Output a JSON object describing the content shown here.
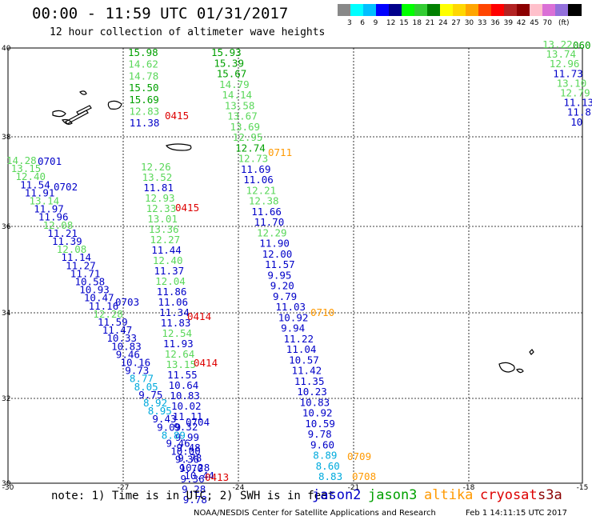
{
  "title": "00:00 - 11:59 UTC 01/31/2017",
  "subtitle": "12 hour collection of altimeter wave heights",
  "colorbar": {
    "unit": "(ft)",
    "colors": [
      "#888888",
      "#00ffff",
      "#00bfff",
      "#0000ff",
      "#00008b",
      "#00ff00",
      "#32cd32",
      "#008000",
      "#ffff00",
      "#ffd700",
      "#ffa500",
      "#ff4500",
      "#ff0000",
      "#b22222",
      "#8b0000",
      "#ffc0cb",
      "#da70d6",
      "#9370db",
      "#000000"
    ],
    "labels": [
      "3",
      "6",
      "9",
      "12",
      "15",
      "18",
      "21",
      "24",
      "27",
      "30",
      "33",
      "36",
      "39",
      "42",
      "45",
      "70"
    ]
  },
  "axes": {
    "x_labels": [
      "-30",
      "-27",
      "-24",
      "-21",
      "-18",
      "-15"
    ],
    "y_labels": [
      "40",
      "38",
      "36",
      "34",
      "32",
      "30"
    ]
  },
  "colors": {
    "jason2": "#0000c8",
    "jason3": "#00a000",
    "jason3_light": "#5ad75a",
    "altika": "#ff9900",
    "cryosat": "#dd0000",
    "s3a": "#8b0000",
    "cyan": "#00aadd"
  },
  "tracks": {
    "t1": [
      {
        "v": "15.98",
        "c": "g"
      },
      {
        "v": "14.62",
        "c": "l"
      },
      {
        "v": "14.78",
        "c": "l"
      },
      {
        "v": "15.50",
        "c": "g"
      },
      {
        "v": "15.69",
        "c": "g"
      },
      {
        "v": "12.83",
        "c": "l"
      },
      {
        "v": "11.38",
        "c": "b"
      }
    ],
    "t2": [
      {
        "v": "15.93",
        "c": "g"
      },
      {
        "v": "15.39",
        "c": "g"
      },
      {
        "v": "15.67",
        "c": "g"
      },
      {
        "v": "14.79",
        "c": "l"
      },
      {
        "v": "14.14",
        "c": "l"
      },
      {
        "v": "13.58",
        "c": "l"
      },
      {
        "v": "13.67",
        "c": "l"
      },
      {
        "v": "13.69",
        "c": "l"
      },
      {
        "v": "12.95",
        "c": "l"
      },
      {
        "v": "12.74",
        "c": "g"
      },
      {
        "v": "12.73",
        "c": "l"
      },
      {
        "v": "11.69",
        "c": "b"
      },
      {
        "v": "11.06",
        "c": "b"
      },
      {
        "v": "12.21",
        "c": "l"
      },
      {
        "v": "12.38",
        "c": "l"
      },
      {
        "v": "11.66",
        "c": "b"
      },
      {
        "v": "11.70",
        "c": "b"
      },
      {
        "v": "12.29",
        "c": "l"
      },
      {
        "v": "11.90",
        "c": "b"
      },
      {
        "v": "12.00",
        "c": "b"
      },
      {
        "v": "11.57",
        "c": "b"
      },
      {
        "v": "9.95",
        "c": "b"
      },
      {
        "v": "9.20",
        "c": "b"
      },
      {
        "v": "9.79",
        "c": "b"
      },
      {
        "v": "11.03",
        "c": "b"
      },
      {
        "v": "10.92",
        "c": "b"
      },
      {
        "v": "9.94",
        "c": "b"
      },
      {
        "v": "11.22",
        "c": "b"
      },
      {
        "v": "11.04",
        "c": "b"
      },
      {
        "v": "10.57",
        "c": "b"
      },
      {
        "v": "11.42",
        "c": "b"
      },
      {
        "v": "11.35",
        "c": "b"
      },
      {
        "v": "10.23",
        "c": "b"
      },
      {
        "v": "10.83",
        "c": "b"
      },
      {
        "v": "10.92",
        "c": "b"
      },
      {
        "v": "10.59",
        "c": "b"
      },
      {
        "v": "9.78",
        "c": "b"
      },
      {
        "v": "9.60",
        "c": "b"
      },
      {
        "v": "8.89",
        "c": "c"
      },
      {
        "v": "8.60",
        "c": "c"
      },
      {
        "v": "8.83",
        "c": "c"
      }
    ],
    "t3": [
      {
        "v": "12.26",
        "c": "l"
      },
      {
        "v": "13.52",
        "c": "l"
      },
      {
        "v": "11.81",
        "c": "b"
      },
      {
        "v": "12.93",
        "c": "l"
      },
      {
        "v": "12.33",
        "c": "l"
      },
      {
        "v": "13.01",
        "c": "l"
      },
      {
        "v": "13.36",
        "c": "l"
      },
      {
        "v": "12.27",
        "c": "l"
      },
      {
        "v": "11.44",
        "c": "b"
      },
      {
        "v": "12.40",
        "c": "l"
      },
      {
        "v": "11.37",
        "c": "b"
      },
      {
        "v": "12.04",
        "c": "l"
      },
      {
        "v": "11.86",
        "c": "b"
      },
      {
        "v": "11.06",
        "c": "b"
      },
      {
        "v": "11.34",
        "c": "b"
      },
      {
        "v": "11.83",
        "c": "b"
      },
      {
        "v": "12.54",
        "c": "l"
      },
      {
        "v": "11.93",
        "c": "b"
      },
      {
        "v": "12.64",
        "c": "l"
      },
      {
        "v": "13.15",
        "c": "l"
      },
      {
        "v": "11.55",
        "c": "b"
      },
      {
        "v": "10.64",
        "c": "b"
      },
      {
        "v": "10.83",
        "c": "b"
      },
      {
        "v": "10.02",
        "c": "b"
      },
      {
        "v": "11.11",
        "c": "b"
      },
      {
        "v": "9.32",
        "c": "b"
      },
      {
        "v": "9.99",
        "c": "b"
      },
      {
        "v": "9.48",
        "c": "b"
      },
      {
        "v": "9.78",
        "c": "b"
      },
      {
        "v": "9.70",
        "c": "b"
      },
      {
        "v": "9.36",
        "c": "b"
      },
      {
        "v": "9.28",
        "c": "b"
      },
      {
        "v": "9.78",
        "c": "b"
      }
    ],
    "t4": [
      {
        "v": "14.28",
        "c": "l"
      },
      {
        "v": "13.15",
        "c": "l"
      },
      {
        "v": "12.40",
        "c": "l"
      },
      {
        "v": "11.54",
        "c": "b"
      },
      {
        "v": "11.91",
        "c": "b"
      },
      {
        "v": "13.14",
        "c": "l"
      },
      {
        "v": "11.97",
        "c": "b"
      },
      {
        "v": "11.96",
        "c": "b"
      },
      {
        "v": "12.08",
        "c": "l"
      },
      {
        "v": "11.21",
        "c": "b"
      },
      {
        "v": "11.39",
        "c": "b"
      },
      {
        "v": "12.08",
        "c": "l"
      },
      {
        "v": "11.14",
        "c": "b"
      },
      {
        "v": "11.27",
        "c": "b"
      },
      {
        "v": "11.71",
        "c": "b"
      },
      {
        "v": "10.58",
        "c": "b"
      },
      {
        "v": "10.93",
        "c": "b"
      },
      {
        "v": "10.47",
        "c": "b"
      },
      {
        "v": "11.16",
        "c": "b"
      },
      {
        "v": "12.28",
        "c": "l"
      },
      {
        "v": "11.59",
        "c": "b"
      },
      {
        "v": "11.47",
        "c": "b"
      },
      {
        "v": "10.33",
        "c": "b"
      },
      {
        "v": "10.83",
        "c": "b"
      },
      {
        "v": "9.46",
        "c": "b"
      },
      {
        "v": "10.16",
        "c": "b"
      },
      {
        "v": "9.73",
        "c": "b"
      },
      {
        "v": "8.77",
        "c": "c"
      },
      {
        "v": "8.05",
        "c": "c"
      },
      {
        "v": "9.75",
        "c": "b"
      },
      {
        "v": "8.92",
        "c": "c"
      },
      {
        "v": "8.95",
        "c": "c"
      },
      {
        "v": "9.43",
        "c": "b"
      },
      {
        "v": "9.09",
        "c": "b"
      },
      {
        "v": "8.89",
        "c": "c"
      },
      {
        "v": "9.46",
        "c": "b"
      },
      {
        "v": "10.00",
        "c": "b"
      },
      {
        "v": "9.36",
        "c": "b"
      },
      {
        "v": "10.28",
        "c": "b"
      },
      {
        "v": "10.44",
        "c": "b"
      }
    ],
    "t5": [
      {
        "v": "13.22",
        "c": "l"
      },
      {
        "v": "13.74",
        "c": "l"
      },
      {
        "v": "12.96",
        "c": "l"
      },
      {
        "v": "11.73",
        "c": "b"
      },
      {
        "v": "13.10",
        "c": "l"
      },
      {
        "v": "12.79",
        "c": "l"
      },
      {
        "v": "11.13",
        "c": "b"
      },
      {
        "v": "11.8",
        "c": "b"
      },
      {
        "v": "10",
        "c": "b"
      }
    ]
  },
  "times": [
    {
      "t": "0415",
      "c": "r"
    },
    {
      "t": "0711",
      "c": "o"
    },
    {
      "t": "0701",
      "c": "b"
    },
    {
      "t": "0702",
      "c": "b"
    },
    {
      "t": "0415",
      "c": "r"
    },
    {
      "t": "0703",
      "c": "b"
    },
    {
      "t": "0710",
      "c": "o"
    },
    {
      "t": "0414",
      "c": "r"
    },
    {
      "t": "0414",
      "c": "r"
    },
    {
      "t": "0704",
      "c": "b"
    },
    {
      "t": "0709",
      "c": "o"
    },
    {
      "t": "0708",
      "c": "o"
    },
    {
      "t": "0413",
      "c": "r"
    },
    {
      "t": "060",
      "c": "g"
    }
  ],
  "note": "note: 1) Time is in UTC; 2) SWH is in feet",
  "legend": [
    "jason2",
    "jason3",
    "altika",
    "cryosat",
    "s3a"
  ],
  "credit": "NOAA/NESDIS Center for Satellite Applications and Research",
  "stamp": "Feb  1 14:11:15 UTC 2017"
}
